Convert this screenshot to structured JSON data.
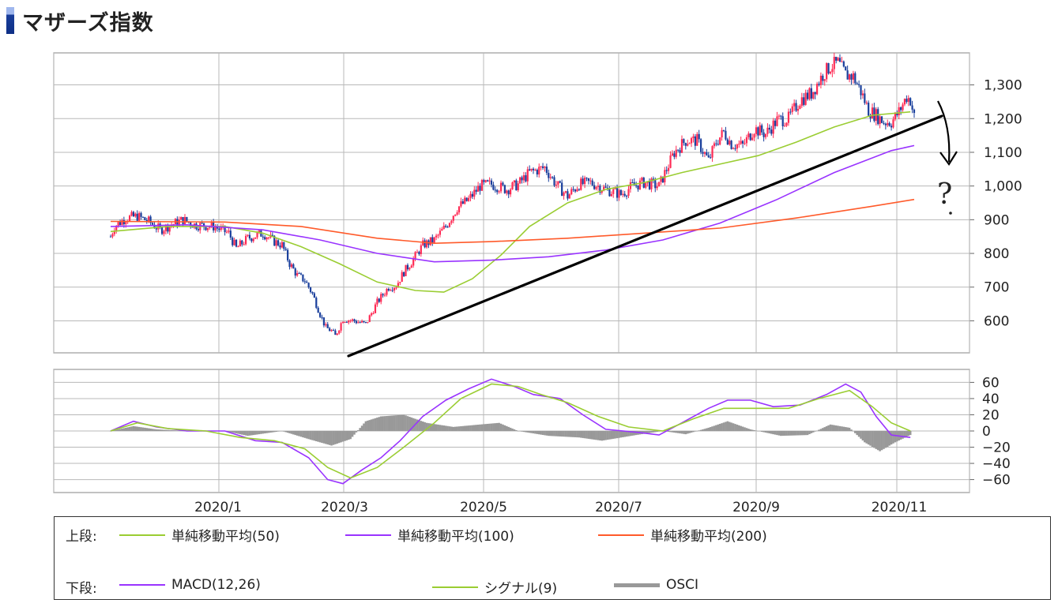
{
  "page": {
    "title": "マザーズ指数"
  },
  "legend": {
    "upper_label": "上段:",
    "lower_label": "下段:",
    "items_upper": [
      {
        "label": "単純移動平均(50)",
        "color": "#9acd32"
      },
      {
        "label": "単純移動平均(100)",
        "color": "#9933ff"
      },
      {
        "label": "単純移動平均(200)",
        "color": "#ff5a2a"
      }
    ],
    "items_lower": [
      {
        "label": "MACD(12,26)",
        "color": "#9933ff"
      },
      {
        "label": "シグナル(9)",
        "color": "#9acd32"
      },
      {
        "label": "OSCI",
        "color": "#999999"
      }
    ]
  },
  "annotation": {
    "text": "?"
  },
  "chart_data": [
    {
      "type": "candlestick",
      "x_ticks": [
        "2020/1",
        "2020/3",
        "2020/5",
        "2020/7",
        "2020/9",
        "2020/11"
      ],
      "y_ticks": [
        "600",
        "700",
        "800",
        "900",
        "1,000",
        "1,100",
        "1,200",
        "1,300"
      ],
      "ylim": [
        505,
        1395
      ],
      "grid": true,
      "colors": {
        "up": "#ff2b55",
        "down": "#1a3f9c"
      },
      "price_path": [
        [
          0,
          850
        ],
        [
          2,
          880
        ],
        [
          8,
          905
        ],
        [
          14,
          910
        ],
        [
          20,
          895
        ],
        [
          26,
          870
        ],
        [
          32,
          885
        ],
        [
          38,
          900
        ],
        [
          44,
          885
        ],
        [
          54,
          880
        ],
        [
          62,
          860
        ],
        [
          66,
          815
        ],
        [
          72,
          845
        ],
        [
          80,
          860
        ],
        [
          86,
          835
        ],
        [
          90,
          825
        ],
        [
          94,
          770
        ],
        [
          98,
          735
        ],
        [
          102,
          720
        ],
        [
          106,
          680
        ],
        [
          110,
          620
        ],
        [
          113,
          580
        ],
        [
          116,
          570
        ],
        [
          118,
          555
        ],
        [
          122,
          605
        ],
        [
          128,
          600
        ],
        [
          134,
          590
        ],
        [
          140,
          655
        ],
        [
          146,
          700
        ],
        [
          150,
          705
        ],
        [
          154,
          745
        ],
        [
          158,
          775
        ],
        [
          164,
          825
        ],
        [
          170,
          840
        ],
        [
          176,
          880
        ],
        [
          182,
          935
        ],
        [
          188,
          960
        ],
        [
          194,
          1000
        ],
        [
          200,
          1005
        ],
        [
          208,
          990
        ],
        [
          214,
          1005
        ],
        [
          220,
          1040
        ],
        [
          228,
          1055
        ],
        [
          234,
          1005
        ],
        [
          240,
          970
        ],
        [
          246,
          1005
        ],
        [
          252,
          1010
        ],
        [
          260,
          990
        ],
        [
          268,
          975
        ],
        [
          274,
          1000
        ],
        [
          280,
          1010
        ],
        [
          288,
          1000
        ],
        [
          296,
          1100
        ],
        [
          302,
          1135
        ],
        [
          308,
          1135
        ],
        [
          314,
          1075
        ],
        [
          318,
          1130
        ],
        [
          322,
          1160
        ],
        [
          326,
          1125
        ],
        [
          332,
          1120
        ],
        [
          338,
          1170
        ],
        [
          344,
          1155
        ],
        [
          350,
          1195
        ],
        [
          356,
          1200
        ],
        [
          362,
          1255
        ],
        [
          368,
          1275
        ],
        [
          374,
          1330
        ],
        [
          378,
          1355
        ],
        [
          382,
          1365
        ],
        [
          386,
          1330
        ],
        [
          390,
          1325
        ],
        [
          394,
          1280
        ],
        [
          398,
          1225
        ],
        [
          402,
          1210
        ],
        [
          406,
          1190
        ],
        [
          410,
          1190
        ],
        [
          414,
          1220
        ],
        [
          418,
          1265
        ],
        [
          420,
          1255
        ],
        [
          422,
          1205
        ]
      ],
      "series": [
        {
          "name": "単純移動平均(50)",
          "color": "#9acd32",
          "points": [
            [
              0,
              865
            ],
            [
              30,
              880
            ],
            [
              60,
              880
            ],
            [
              80,
              860
            ],
            [
              100,
              820
            ],
            [
              120,
              770
            ],
            [
              140,
              715
            ],
            [
              160,
              690
            ],
            [
              175,
              685
            ],
            [
              190,
              725
            ],
            [
              205,
              795
            ],
            [
              220,
              880
            ],
            [
              240,
              950
            ],
            [
              260,
              990
            ],
            [
              280,
              1010
            ],
            [
              300,
              1040
            ],
            [
              320,
              1065
            ],
            [
              340,
              1090
            ],
            [
              360,
              1130
            ],
            [
              380,
              1175
            ],
            [
              400,
              1210
            ],
            [
              420,
              1220
            ]
          ]
        },
        {
          "name": "単純移動平均(100)",
          "color": "#9933ff",
          "points": [
            [
              0,
              880
            ],
            [
              40,
              885
            ],
            [
              80,
              870
            ],
            [
              110,
              840
            ],
            [
              140,
              800
            ],
            [
              170,
              775
            ],
            [
              200,
              780
            ],
            [
              230,
              790
            ],
            [
              260,
              810
            ],
            [
              290,
              840
            ],
            [
              320,
              890
            ],
            [
              350,
              960
            ],
            [
              380,
              1040
            ],
            [
              410,
              1105
            ],
            [
              422,
              1120
            ]
          ]
        },
        {
          "name": "単純移動平均(200)",
          "color": "#ff5a2a",
          "points": [
            [
              0,
              895
            ],
            [
              60,
              893
            ],
            [
              100,
              880
            ],
            [
              140,
              845
            ],
            [
              170,
              830
            ],
            [
              200,
              835
            ],
            [
              240,
              845
            ],
            [
              280,
              860
            ],
            [
              320,
              875
            ],
            [
              360,
              905
            ],
            [
              400,
              940
            ],
            [
              422,
              960
            ]
          ]
        }
      ]
    },
    {
      "type": "line",
      "x_ticks": [
        "2020/1",
        "2020/3",
        "2020/5",
        "2020/7",
        "2020/9",
        "2020/11"
      ],
      "y_ticks": [
        "60",
        "40",
        "20",
        "0",
        "−20",
        "−40",
        "−60"
      ],
      "ylim": [
        -76,
        76
      ],
      "grid": true,
      "series": [
        {
          "name": "MACD(12,26)",
          "color": "#9933ff",
          "points": [
            [
              0,
              0
            ],
            [
              12,
              12
            ],
            [
              24,
              5
            ],
            [
              40,
              0
            ],
            [
              60,
              0
            ],
            [
              76,
              -12
            ],
            [
              90,
              -14
            ],
            [
              104,
              -33
            ],
            [
              114,
              -60
            ],
            [
              122,
              -65
            ],
            [
              132,
              -48
            ],
            [
              142,
              -33
            ],
            [
              152,
              -12
            ],
            [
              164,
              18
            ],
            [
              176,
              38
            ],
            [
              188,
              52
            ],
            [
              200,
              64
            ],
            [
              212,
              55
            ],
            [
              222,
              45
            ],
            [
              236,
              40
            ],
            [
              248,
              20
            ],
            [
              260,
              2
            ],
            [
              278,
              -2
            ],
            [
              288,
              -5
            ],
            [
              300,
              10
            ],
            [
              314,
              28
            ],
            [
              324,
              38
            ],
            [
              336,
              38
            ],
            [
              348,
              30
            ],
            [
              362,
              32
            ],
            [
              376,
              45
            ],
            [
              386,
              58
            ],
            [
              394,
              48
            ],
            [
              402,
              18
            ],
            [
              410,
              -5
            ],
            [
              420,
              -8
            ]
          ]
        },
        {
          "name": "シグナル(9)",
          "color": "#9acd32",
          "points": [
            [
              0,
              0
            ],
            [
              14,
              10
            ],
            [
              30,
              3
            ],
            [
              50,
              0
            ],
            [
              68,
              -8
            ],
            [
              86,
              -12
            ],
            [
              102,
              -22
            ],
            [
              114,
              -45
            ],
            [
              126,
              -58
            ],
            [
              140,
              -45
            ],
            [
              154,
              -20
            ],
            [
              170,
              10
            ],
            [
              184,
              40
            ],
            [
              200,
              58
            ],
            [
              214,
              55
            ],
            [
              226,
              45
            ],
            [
              240,
              35
            ],
            [
              256,
              18
            ],
            [
              272,
              5
            ],
            [
              290,
              0
            ],
            [
              306,
              15
            ],
            [
              322,
              28
            ],
            [
              340,
              28
            ],
            [
              356,
              28
            ],
            [
              372,
              40
            ],
            [
              388,
              50
            ],
            [
              400,
              30
            ],
            [
              410,
              10
            ],
            [
              420,
              0
            ]
          ]
        },
        {
          "name": "OSCI",
          "color": "#999999",
          "points": [
            [
              0,
              0
            ],
            [
              12,
              6
            ],
            [
              24,
              2
            ],
            [
              40,
              0
            ],
            [
              60,
              0
            ],
            [
              72,
              -6
            ],
            [
              90,
              0
            ],
            [
              104,
              -10
            ],
            [
              116,
              -18
            ],
            [
              126,
              -10
            ],
            [
              134,
              12
            ],
            [
              142,
              18
            ],
            [
              154,
              20
            ],
            [
              166,
              10
            ],
            [
              180,
              5
            ],
            [
              194,
              8
            ],
            [
              204,
              10
            ],
            [
              214,
              0
            ],
            [
              230,
              -6
            ],
            [
              246,
              -8
            ],
            [
              258,
              -12
            ],
            [
              276,
              -5
            ],
            [
              290,
              0
            ],
            [
              302,
              -4
            ],
            [
              314,
              4
            ],
            [
              324,
              12
            ],
            [
              336,
              2
            ],
            [
              352,
              -6
            ],
            [
              366,
              -5
            ],
            [
              378,
              8
            ],
            [
              388,
              4
            ],
            [
              396,
              -14
            ],
            [
              404,
              -25
            ],
            [
              412,
              -14
            ],
            [
              420,
              -5
            ]
          ]
        }
      ]
    }
  ]
}
